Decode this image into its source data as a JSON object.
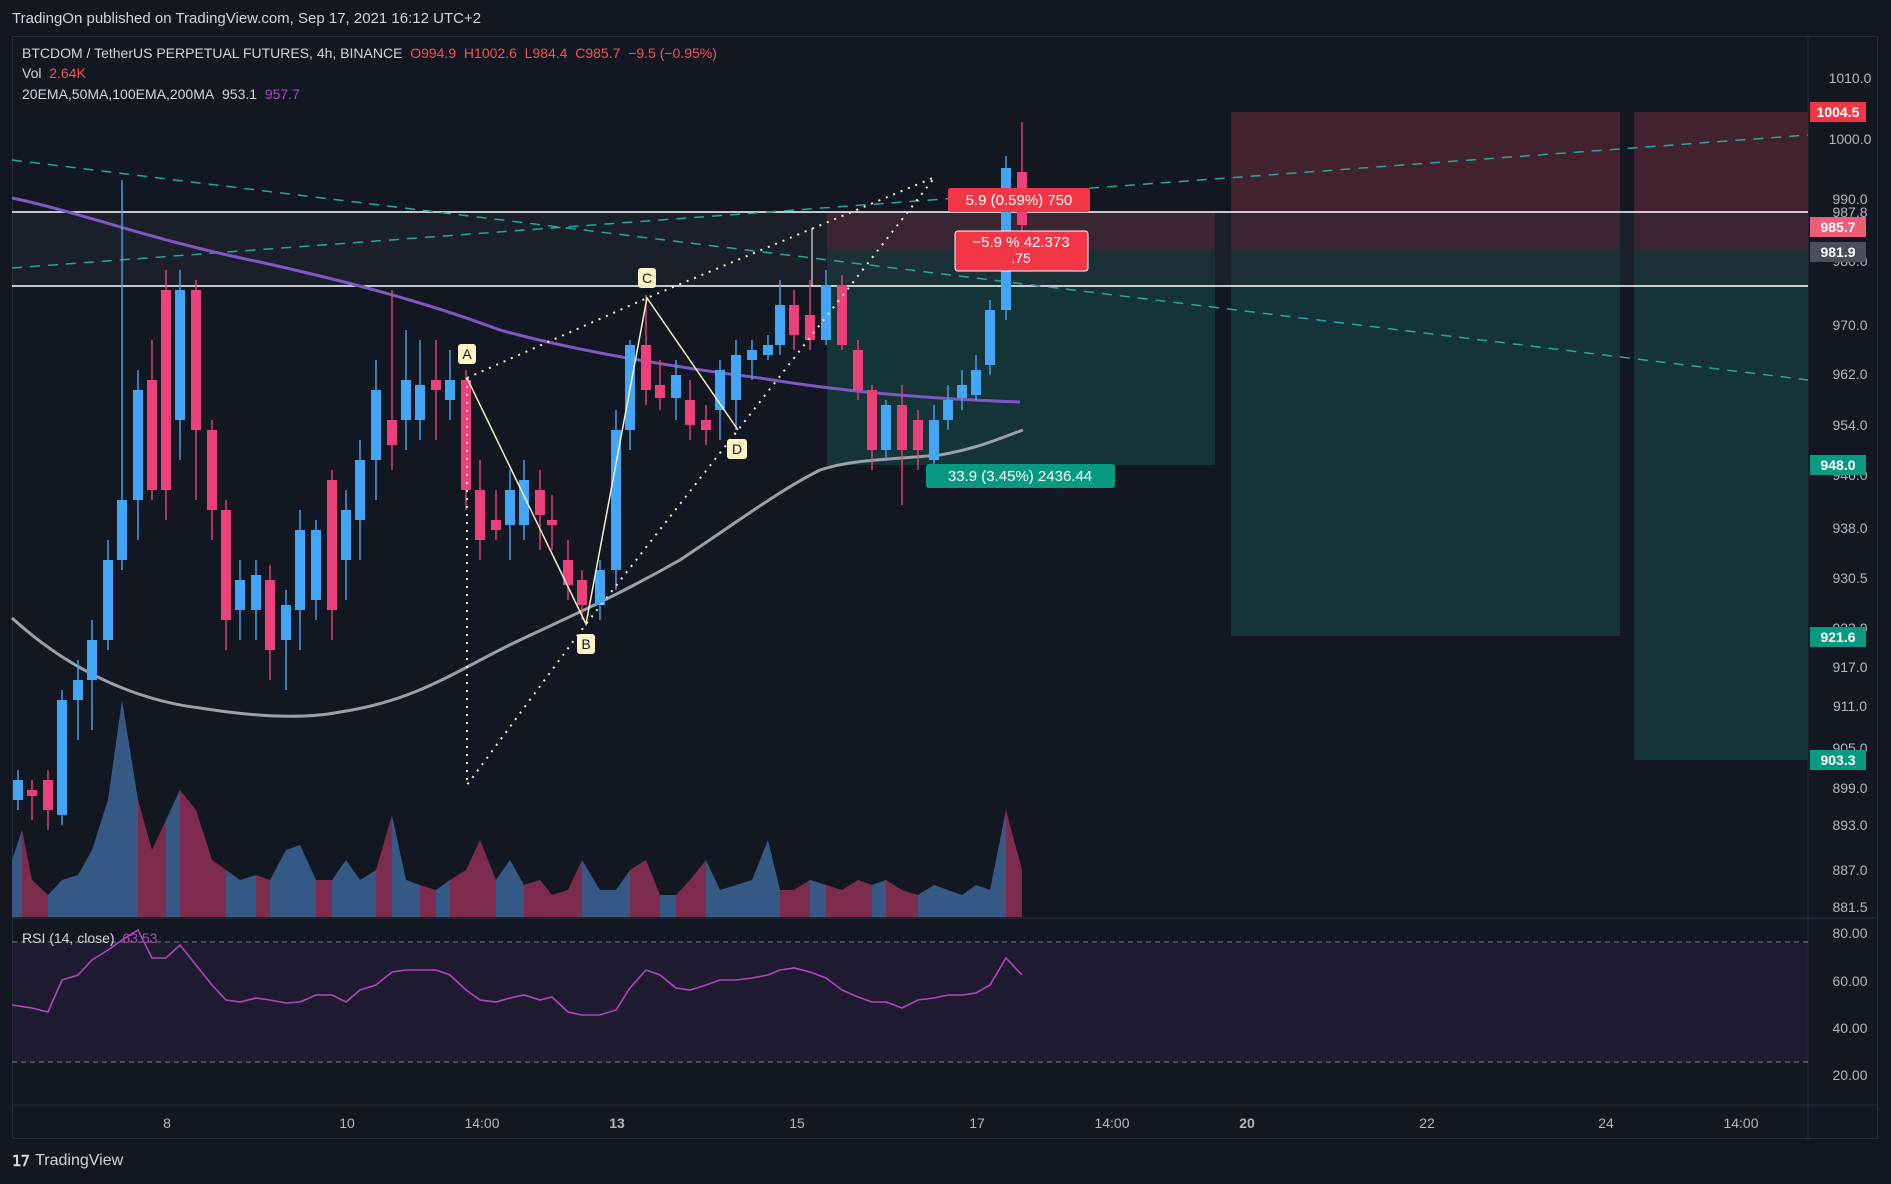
{
  "header": {
    "published": "TradingOn published on TradingView.com, Sep 17, 2021 16:12 UTC+2"
  },
  "legend": {
    "symbol": "BTCDOM / TetherUS PERPETUAL FUTURES, 4h, BINANCE",
    "open": "O994.9",
    "high": "H1002.6",
    "low": "L984.4",
    "close": "C985.7",
    "change": "−9.5 (−0.95%)",
    "vol_label": "Vol",
    "vol_value": "2.64K",
    "ema_label": "20EMA,50MA,100EMA,200MA",
    "ema_value1": "953.1",
    "ema_value2": "957.7",
    "rsi_label": "RSI (14, close)",
    "rsi_value": "63.53"
  },
  "price_axis": {
    "ticks": [
      "1010.0",
      "1000.0",
      "990.0",
      "987.8",
      "980.0",
      "970.0",
      "962.0",
      "954.0",
      "946.0",
      "938.0",
      "930.5",
      "923.0",
      "917.0",
      "911.0",
      "905.0",
      "899.0",
      "893.0",
      "887.0",
      "881.5"
    ],
    "badges": [
      {
        "text": "1004.5",
        "color": "#f23645"
      },
      {
        "text": "985.7",
        "color": "#ef5c7a"
      },
      {
        "text": "981.9",
        "color": "#4a4e5a"
      },
      {
        "text": "948.0",
        "color": "#089981"
      },
      {
        "text": "921.6",
        "color": "#089981"
      },
      {
        "text": "903.3",
        "color": "#089981"
      }
    ]
  },
  "rsi_axis": {
    "ticks": [
      "80.00",
      "60.00",
      "40.00",
      "20.00"
    ]
  },
  "time_axis": {
    "ticks": [
      "8",
      "10",
      "14:00",
      "13",
      "15",
      "17",
      "14:00",
      "20",
      "22",
      "24",
      "14:00"
    ]
  },
  "annotations": {
    "pattern_points": [
      "A",
      "B",
      "C",
      "D"
    ],
    "short_label": "5.9 (0.59%) 750",
    "short_info": "−5.9 % 42.373",
    "short_info2": ".75",
    "long_label": "33.9 (3.45%) 2436.44"
  },
  "colors": {
    "background": "#131722",
    "up_candle": "#42a5f5",
    "down_candle": "#ec407a",
    "stop_zone": "#4a2530",
    "target_zone": "#16373a",
    "ema200": "#7e57c2",
    "ema100": "#9aa0a8",
    "trendline": "#26a69a",
    "rsi_line": "#ab47bc"
  },
  "footer": {
    "brand": "TradingView"
  }
}
